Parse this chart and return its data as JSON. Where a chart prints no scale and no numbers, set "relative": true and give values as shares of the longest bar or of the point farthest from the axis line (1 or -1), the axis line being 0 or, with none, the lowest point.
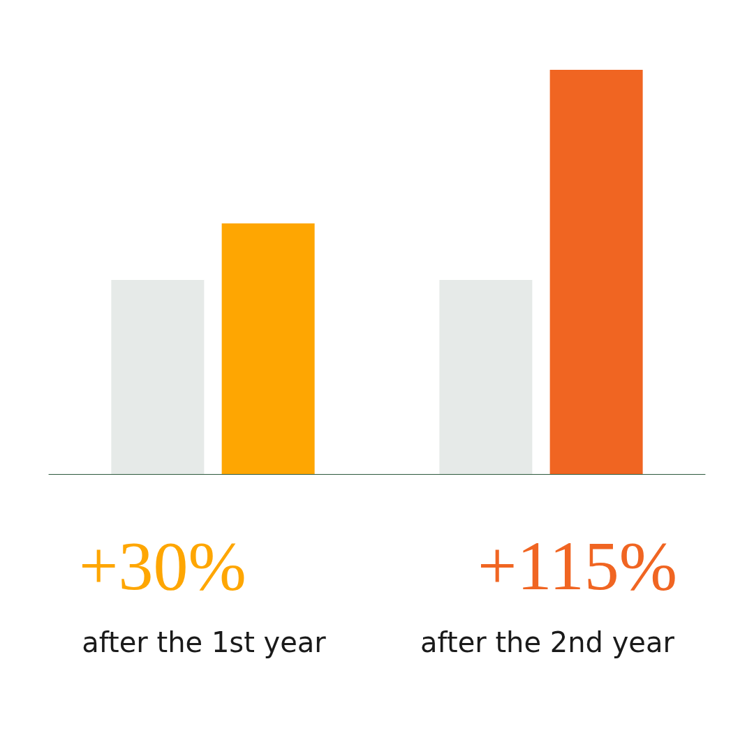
{
  "chart_data": {
    "type": "bar",
    "relative": true,
    "categories": [
      null,
      null
    ],
    "series": [
      {
        "color": "#e6eae8",
        "values": [
          0.48,
          0.48
        ]
      },
      {
        "colors": [
          "#fea602",
          "#f06522"
        ],
        "values": [
          0.62,
          1
        ]
      }
    ],
    "annotations": [
      "+30%",
      "after the 1st year",
      "+115%",
      "after the 2nd year"
    ]
  }
}
